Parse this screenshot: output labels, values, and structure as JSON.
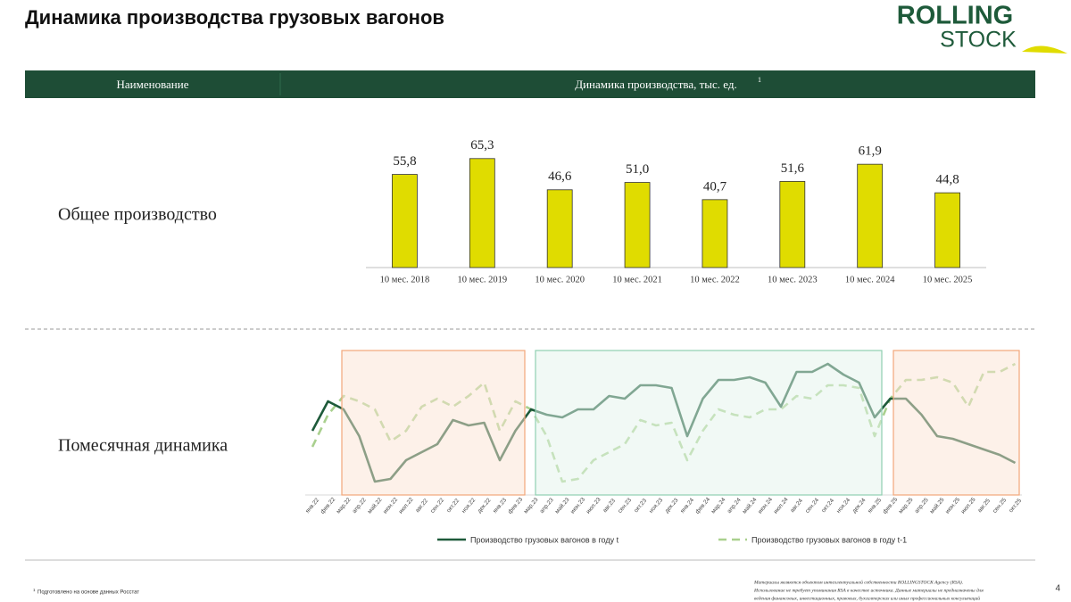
{
  "header": {
    "title": "Динамика производства грузовых вагонов",
    "logo_top": "ROLLING",
    "logo_bottom": "STOCK"
  },
  "table_header": {
    "col1": "Наименование",
    "col2": "Динамика производства, тыс. ед.",
    "col2_note": "1"
  },
  "rows": [
    "Общее производство",
    "Помесячная динамика"
  ],
  "chart_data": [
    {
      "type": "bar",
      "categories": [
        "10 мес. 2018",
        "10 мес. 2019",
        "10 мес. 2020",
        "10 мес. 2021",
        "10 мес. 2022",
        "10 мес. 2023",
        "10 мес. 2024",
        "10 мес. 2025"
      ],
      "values": [
        55.8,
        65.3,
        46.6,
        51.0,
        40.7,
        51.6,
        61.9,
        44.8
      ],
      "value_labels": [
        "55,8",
        "65,3",
        "46,6",
        "51,0",
        "40,7",
        "51,6",
        "61,9",
        "44,8"
      ],
      "color": "#e0dc00",
      "ylim": [
        0,
        70
      ]
    },
    {
      "type": "line",
      "categories": [
        "янв.22",
        "фев.22",
        "мар.22",
        "апр.22",
        "май.22",
        "июн.22",
        "июл.22",
        "авг.22",
        "сен.22",
        "окт.22",
        "ноя.22",
        "дек.22",
        "янв.23",
        "фев.23",
        "мар.23",
        "апр.23",
        "май.23",
        "июн.23",
        "июл.23",
        "авг.23",
        "сен.23",
        "окт.23",
        "ноя.23",
        "дек.23",
        "янв.24",
        "фев.24",
        "мар.24",
        "апр.24",
        "май.24",
        "июн.24",
        "июл.24",
        "авг.24",
        "сен.24",
        "окт.24",
        "ноя.24",
        "дек.24",
        "янв.25",
        "фев.25",
        "мар.25",
        "апр.25",
        "май.25",
        "июн.25",
        "июл.25",
        "авг.25",
        "сен.25",
        "окт.25"
      ],
      "series": [
        {
          "name": "Производство грузовых вагонов в году t",
          "color": "#1e5a3a",
          "line_style": "solid",
          "values": [
            3.9,
            5.0,
            4.7,
            3.7,
            2.0,
            2.1,
            2.8,
            3.1,
            3.4,
            4.3,
            4.1,
            4.2,
            2.8,
            3.9,
            4.7,
            4.5,
            4.4,
            4.7,
            4.7,
            5.2,
            5.1,
            5.6,
            5.6,
            5.5,
            3.7,
            5.1,
            5.8,
            5.8,
            5.9,
            5.7,
            4.8,
            6.1,
            6.1,
            6.4,
            6.0,
            5.7,
            4.4,
            5.1,
            5.1,
            4.5,
            3.7,
            3.6,
            3.4,
            3.2,
            3.0,
            2.7
          ]
        },
        {
          "name": "Производство грузовых вагонов в году t-1",
          "color": "#a9d08e",
          "line_style": "dashed",
          "values": [
            3.3,
            4.5,
            5.2,
            5.0,
            4.7,
            3.5,
            3.9,
            4.8,
            5.1,
            4.8,
            5.2,
            5.7,
            3.9,
            5.0,
            4.7,
            3.7,
            2.0,
            2.1,
            2.8,
            3.1,
            3.4,
            4.3,
            4.1,
            4.2,
            2.8,
            3.9,
            4.7,
            4.5,
            4.4,
            4.7,
            4.7,
            5.2,
            5.1,
            5.6,
            5.6,
            5.5,
            3.7,
            5.1,
            5.8,
            5.8,
            5.9,
            5.7,
            4.8,
            6.1,
            6.1,
            6.4
          ]
        }
      ],
      "ylim": [
        1.5,
        7
      ]
    }
  ],
  "footer": {
    "note_mark": "1",
    "note": "Подготовлено на основе данных Росстат",
    "disclaimer": [
      "Материалы являются объектом интеллектуальной собственности ROLLINGSTOCK Agency (RSA).",
      "Использование не требует упоминания RSA в качестве источника. Данные материалы не предназначены для",
      "ведения финансовых, инвестиционных, правовых, бухгалтерских или иных профессиональных консультаций"
    ],
    "page": "4"
  }
}
